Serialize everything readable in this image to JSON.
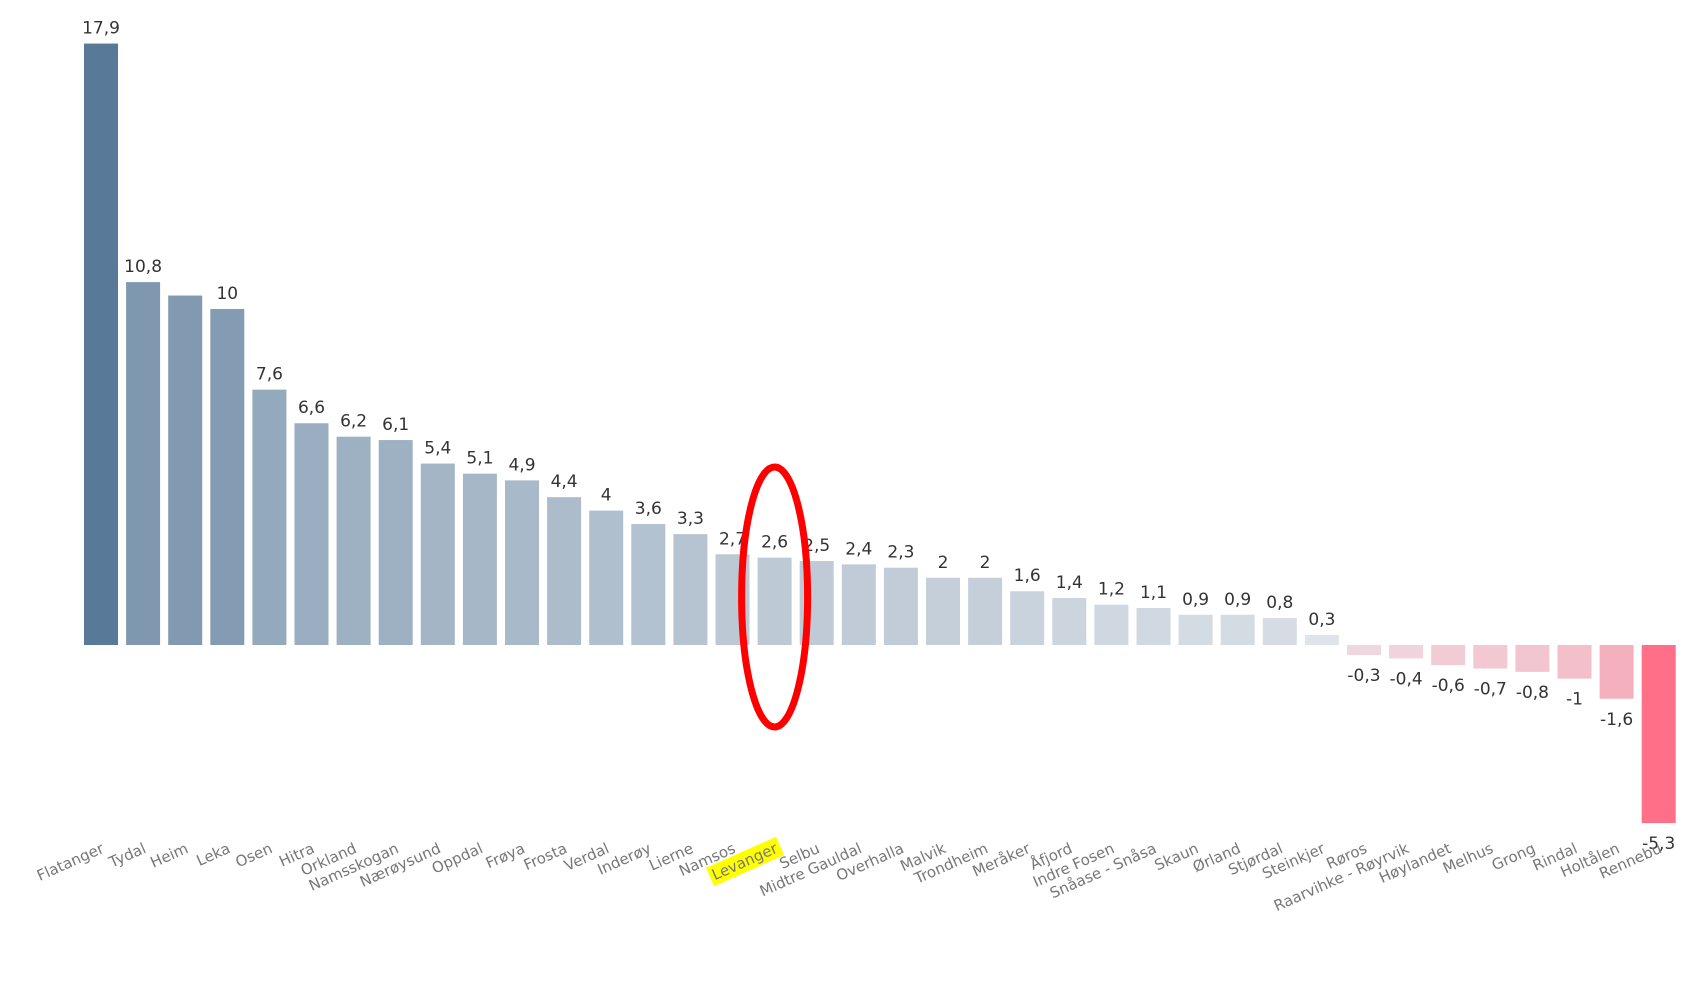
{
  "chart_data": {
    "type": "bar",
    "categories": [
      "Flatanger",
      "Tydal",
      "Heim",
      "Leka",
      "Osen",
      "Hitra",
      "Orkland",
      "Namsskogan",
      "Nærøysund",
      "Oppdal",
      "Frøya",
      "Frosta",
      "Verdal",
      "Inderøy",
      "Lierne",
      "Namsos",
      "Levanger",
      "Selbu",
      "Midtre Gauldal",
      "Overhalla",
      "Malvik",
      "Trondheim",
      "Meråker",
      "Åfjord",
      "Indre Fosen",
      "Snåase - Snåsa",
      "Skaun",
      "Ørland",
      "Stjørdal",
      "Steinkjer",
      "Røros",
      "Raarvihke - Røyrvik",
      "Høylandet",
      "Melhus",
      "Grong",
      "Rindal",
      "Holtålen",
      "Rennebu"
    ],
    "values": [
      17.9,
      10.8,
      10.4,
      10,
      7.6,
      6.6,
      6.2,
      6.1,
      5.4,
      5.1,
      4.9,
      4.4,
      4,
      3.6,
      3.3,
      2.7,
      2.6,
      2.5,
      2.4,
      2.3,
      2,
      2,
      1.6,
      1.4,
      1.2,
      1.1,
      0.9,
      0.9,
      0.8,
      0.3,
      -0.3,
      -0.4,
      -0.6,
      -0.7,
      -0.8,
      -1,
      -1.6,
      -5.3
    ],
    "value_labels": [
      "17,9",
      "10,8",
      null,
      "10",
      "7,6",
      "6,6",
      "6,2",
      "6,1",
      "5,4",
      "5,1",
      "4,9",
      "4,4",
      "4",
      "3,6",
      "3,3",
      "2,7",
      "2,6",
      "2,5",
      "2,4",
      "2,3",
      "2",
      "2",
      "1,6",
      "1,4",
      "1,2",
      "1,1",
      "0,9",
      "0,9",
      "0,8",
      "0,3",
      "-0,3",
      "-0,4",
      "-0,6",
      "-0,7",
      "-0,8",
      "-1",
      "-1,6",
      "-5,3"
    ],
    "color_scale": {
      "max": "#587a98",
      "zero": "#eceef2",
      "min": "#ff6f88"
    }
  }
}
